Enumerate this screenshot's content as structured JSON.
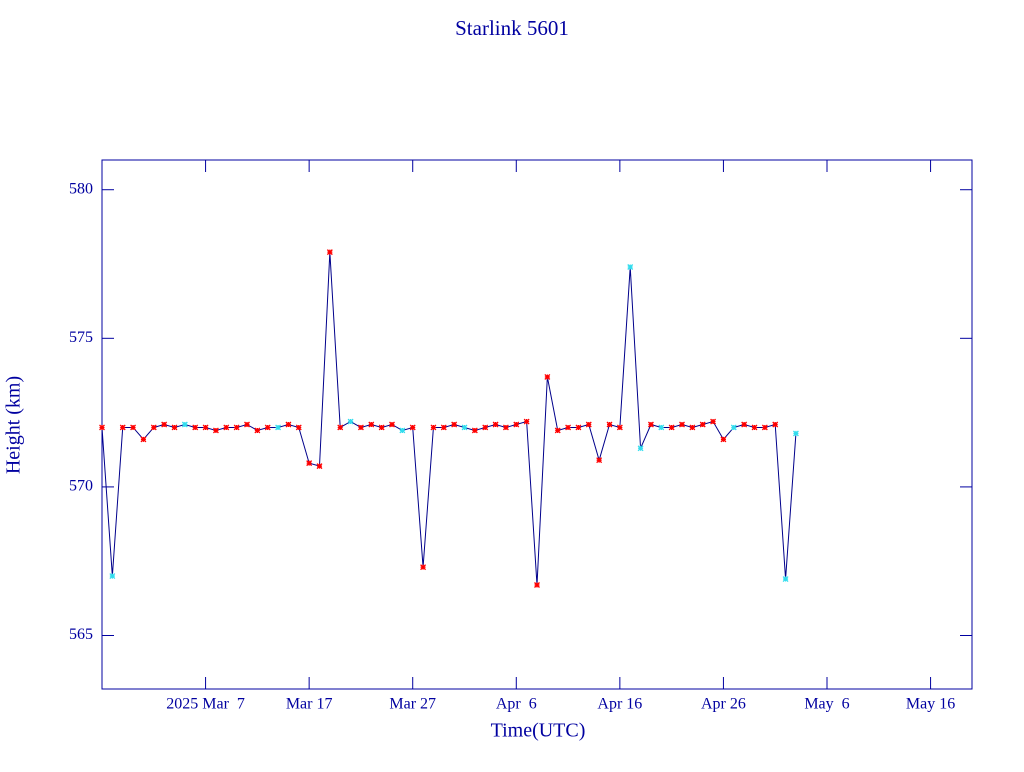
{
  "chart_data": {
    "type": "line",
    "title": "Starlink 5601",
    "xlabel": "Time(UTC)",
    "ylabel": "Height (km)",
    "xlim": [
      "2025-02-25",
      "2025-05-20"
    ],
    "xticks": [
      {
        "value": "2025-03-07",
        "label": "2025 Mar  7"
      },
      {
        "value": "2025-03-17",
        "label": "Mar 17"
      },
      {
        "value": "2025-03-27",
        "label": "Mar 27"
      },
      {
        "value": "2025-04-06",
        "label": "Apr  6"
      },
      {
        "value": "2025-04-16",
        "label": "Apr 16"
      },
      {
        "value": "2025-04-26",
        "label": "Apr 26"
      },
      {
        "value": "2025-05-06",
        "label": "May  6"
      },
      {
        "value": "2025-05-16",
        "label": "May 16"
      }
    ],
    "ylim": [
      563.2,
      581
    ],
    "yticks": [
      565,
      570,
      575,
      580
    ],
    "series": [
      {
        "color": "#00008b",
        "x": [
          "2025-02-25",
          "2025-02-26",
          "2025-02-27",
          "2025-02-28",
          "2025-03-01",
          "2025-03-02",
          "2025-03-03",
          "2025-03-04",
          "2025-03-05",
          "2025-03-06",
          "2025-03-07",
          "2025-03-08",
          "2025-03-09",
          "2025-03-10",
          "2025-03-11",
          "2025-03-12",
          "2025-03-13",
          "2025-03-14",
          "2025-03-15",
          "2025-03-16",
          "2025-03-17",
          "2025-03-18",
          "2025-03-19",
          "2025-03-20",
          "2025-03-21",
          "2025-03-22",
          "2025-03-23",
          "2025-03-24",
          "2025-03-25",
          "2025-03-26",
          "2025-03-27",
          "2025-03-28",
          "2025-03-29",
          "2025-03-30",
          "2025-03-31",
          "2025-04-01",
          "2025-04-02",
          "2025-04-03",
          "2025-04-04",
          "2025-04-05",
          "2025-04-06",
          "2025-04-07",
          "2025-04-08",
          "2025-04-09",
          "2025-04-10",
          "2025-04-11",
          "2025-04-12",
          "2025-04-13",
          "2025-04-14",
          "2025-04-15",
          "2025-04-16",
          "2025-04-17",
          "2025-04-18",
          "2025-04-19",
          "2025-04-20",
          "2025-04-21",
          "2025-04-22",
          "2025-04-23",
          "2025-04-24",
          "2025-04-25",
          "2025-04-26",
          "2025-04-27",
          "2025-04-28",
          "2025-04-29",
          "2025-04-30",
          "2025-05-01",
          "2025-05-02",
          "2025-05-03"
        ],
        "values": [
          572.0,
          567.0,
          572.0,
          572.0,
          571.6,
          572.0,
          572.1,
          572.0,
          572.1,
          572.0,
          572.0,
          571.9,
          572.0,
          572.0,
          572.1,
          571.9,
          572.0,
          572.0,
          572.1,
          572.0,
          570.8,
          570.7,
          577.9,
          572.0,
          572.2,
          572.0,
          572.1,
          572.0,
          572.1,
          571.9,
          572.0,
          567.3,
          572.0,
          572.0,
          572.1,
          572.0,
          571.9,
          572.0,
          572.1,
          572.0,
          572.1,
          572.2,
          566.7,
          573.7,
          571.9,
          572.0,
          572.0,
          572.1,
          570.9,
          572.1,
          572.0,
          577.4,
          571.3,
          572.1,
          572.0,
          572.0,
          572.1,
          572.0,
          572.1,
          572.2,
          571.6,
          572.0,
          572.1,
          572.0,
          572.0,
          572.1,
          566.9,
          571.8
        ],
        "marker_colors": [
          "#ff0000",
          "#33ddee",
          "#ff0000",
          "#ff0000",
          "#ff0000",
          "#ff0000",
          "#ff0000",
          "#ff0000",
          "#33ddee",
          "#ff0000",
          "#ff0000",
          "#ff0000",
          "#ff0000",
          "#ff0000",
          "#ff0000",
          "#ff0000",
          "#ff0000",
          "#33ddee",
          "#ff0000",
          "#ff0000",
          "#ff0000",
          "#ff0000",
          "#ff0000",
          "#ff0000",
          "#33ddee",
          "#ff0000",
          "#ff0000",
          "#ff0000",
          "#ff0000",
          "#33ddee",
          "#ff0000",
          "#ff0000",
          "#ff0000",
          "#ff0000",
          "#ff0000",
          "#33ddee",
          "#ff0000",
          "#ff0000",
          "#ff0000",
          "#ff0000",
          "#ff0000",
          "#ff0000",
          "#ff0000",
          "#ff0000",
          "#ff0000",
          "#ff0000",
          "#ff0000",
          "#ff0000",
          "#ff0000",
          "#ff0000",
          "#ff0000",
          "#33ddee",
          "#33ddee",
          "#ff0000",
          "#33ddee",
          "#ff0000",
          "#ff0000",
          "#ff0000",
          "#ff0000",
          "#ff0000",
          "#ff0000",
          "#33ddee",
          "#ff0000",
          "#ff0000",
          "#ff0000",
          "#ff0000",
          "#33ddee",
          "#33ddee"
        ]
      }
    ]
  }
}
